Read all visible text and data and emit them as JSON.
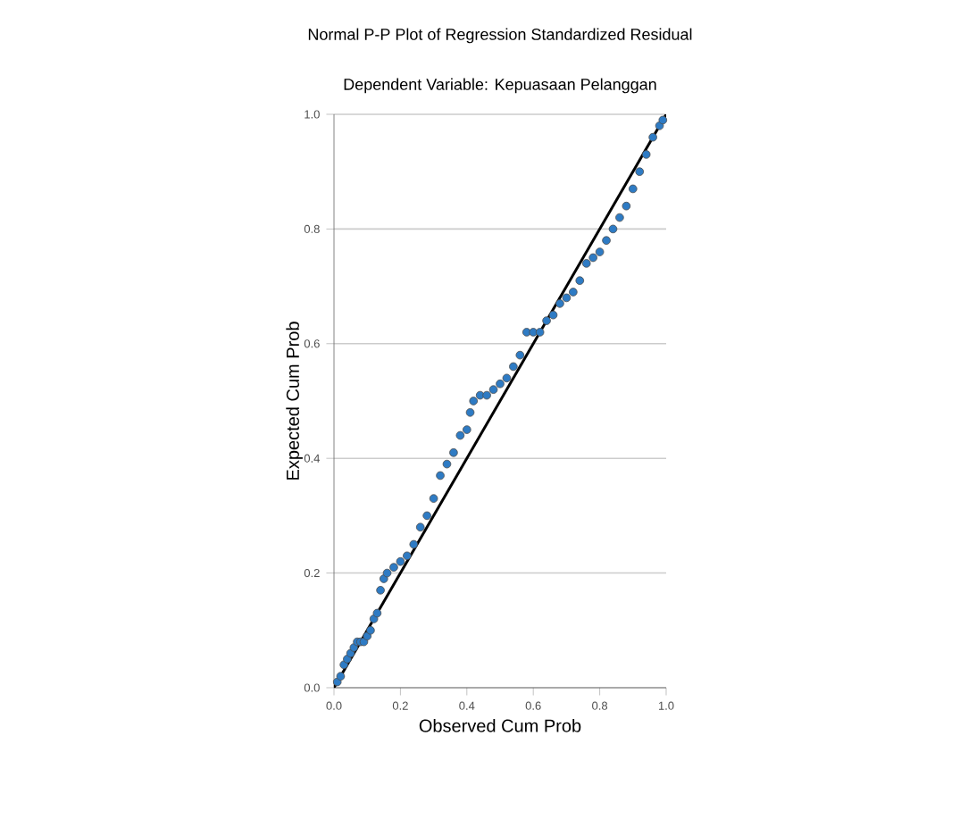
{
  "chart_data": {
    "type": "scatter",
    "title": "Normal P-P Plot of Regression Standardized Residual",
    "subtitle": "Dependent Variable: Kepuasaan Pelanggan",
    "xlabel": "Observed Cum Prob",
    "ylabel": "Expected Cum Prob",
    "xlim": [
      0,
      1
    ],
    "ylim": [
      0,
      1
    ],
    "xticks": [
      {
        "value": 0,
        "label": "0.0"
      },
      {
        "value": 0.2,
        "label": "0.2"
      },
      {
        "value": 0.4,
        "label": "0.4"
      },
      {
        "value": 0.6,
        "label": "0.6"
      },
      {
        "value": 0.8,
        "label": "0.8"
      },
      {
        "value": 1,
        "label": "1.0"
      }
    ],
    "yticks": [
      {
        "value": 0,
        "label": "0.0"
      },
      {
        "value": 0.2,
        "label": "0.2"
      },
      {
        "value": 0.4,
        "label": "0.4"
      },
      {
        "value": 0.6,
        "label": "0.6"
      },
      {
        "value": 0.8,
        "label": "0.8"
      },
      {
        "value": 1,
        "label": "1.0"
      }
    ],
    "grid": "y",
    "series": [
      {
        "marker": "circle",
        "color": "#2e7bc4",
        "x": [
          0.01,
          0.02,
          0.03,
          0.04,
          0.05,
          0.06,
          0.07,
          0.08,
          0.09,
          0.1,
          0.11,
          0.12,
          0.13,
          0.14,
          0.15,
          0.16,
          0.18,
          0.2,
          0.22,
          0.24,
          0.26,
          0.28,
          0.3,
          0.32,
          0.34,
          0.36,
          0.38,
          0.4,
          0.41,
          0.42,
          0.44,
          0.46,
          0.48,
          0.5,
          0.52,
          0.54,
          0.56,
          0.58,
          0.6,
          0.62,
          0.64,
          0.66,
          0.68,
          0.7,
          0.72,
          0.74,
          0.76,
          0.78,
          0.8,
          0.82,
          0.84,
          0.86,
          0.88,
          0.9,
          0.92,
          0.94,
          0.96,
          0.98,
          0.99
        ],
        "values": [
          0.01,
          0.02,
          0.04,
          0.05,
          0.06,
          0.07,
          0.08,
          0.08,
          0.08,
          0.09,
          0.1,
          0.12,
          0.13,
          0.17,
          0.19,
          0.2,
          0.21,
          0.22,
          0.23,
          0.25,
          0.28,
          0.3,
          0.33,
          0.37,
          0.39,
          0.41,
          0.44,
          0.45,
          0.48,
          0.5,
          0.51,
          0.51,
          0.52,
          0.53,
          0.54,
          0.56,
          0.58,
          0.62,
          0.62,
          0.62,
          0.64,
          0.65,
          0.67,
          0.68,
          0.69,
          0.71,
          0.74,
          0.75,
          0.76,
          0.78,
          0.8,
          0.82,
          0.84,
          0.87,
          0.9,
          0.93,
          0.96,
          0.98,
          0.99
        ]
      },
      {
        "type": "line",
        "marker": "none",
        "color": "#000000",
        "x": [
          0,
          1
        ],
        "values": [
          0,
          1
        ]
      }
    ]
  }
}
